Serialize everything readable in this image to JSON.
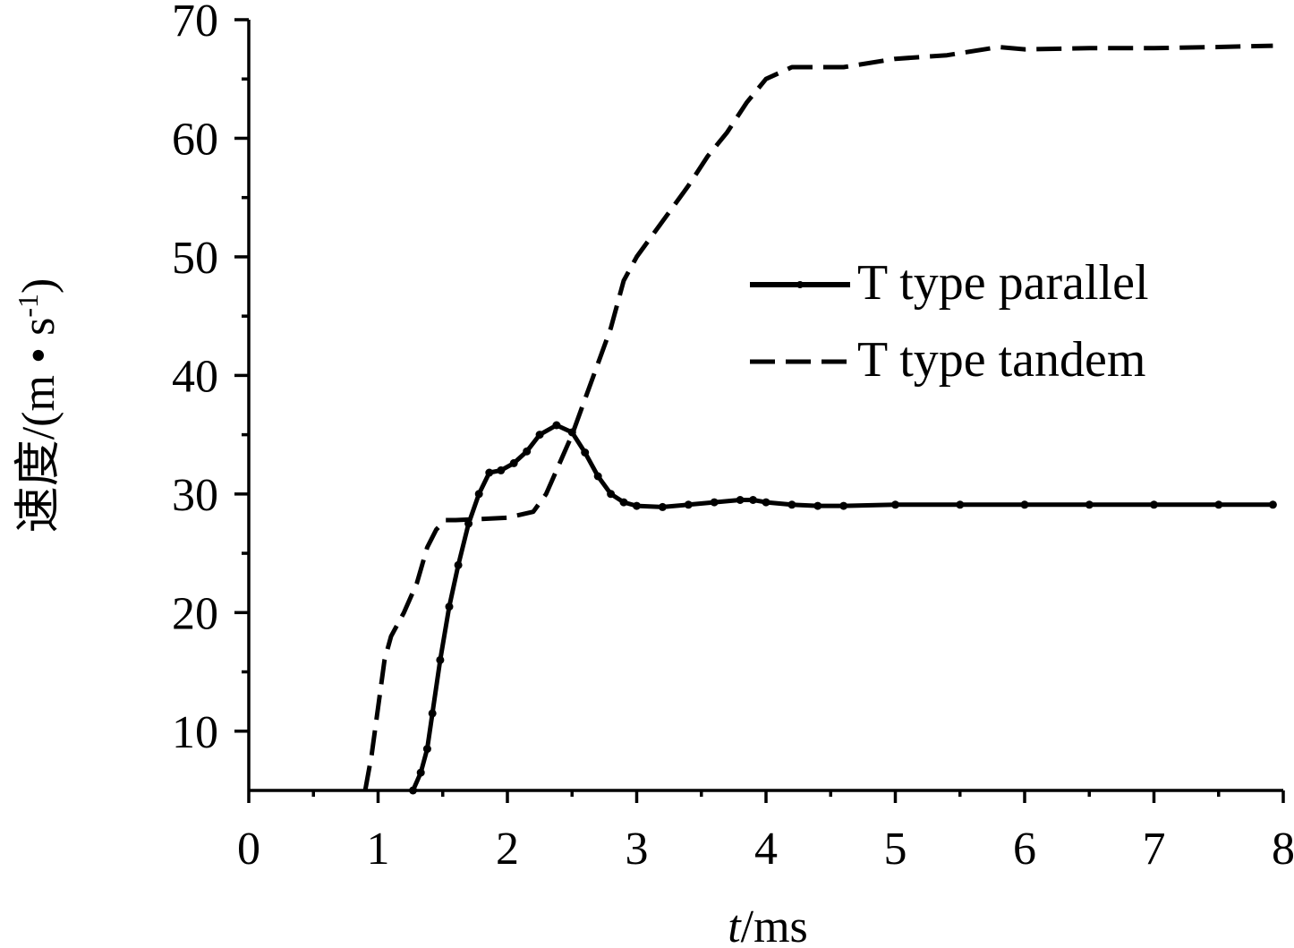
{
  "chart_data": {
    "type": "line",
    "xlabel_italic": "t",
    "xlabel_rest": "/ms",
    "ylabel_main": "速度/(m • s",
    "ylabel_sup": "-1",
    "ylabel_close": ")",
    "xlim": [
      0,
      8
    ],
    "ylim": [
      5,
      70
    ],
    "x_ticks": [
      0,
      1,
      2,
      3,
      4,
      5,
      6,
      7,
      8
    ],
    "y_ticks": [
      10,
      20,
      30,
      40,
      50,
      60,
      70
    ],
    "grid": false,
    "legend_position": "right-middle",
    "series": [
      {
        "name": "T type parallel",
        "style": "solid-marker",
        "color": "#000000",
        "points": [
          [
            1.27,
            5.0
          ],
          [
            1.33,
            6.5
          ],
          [
            1.38,
            8.5
          ],
          [
            1.42,
            11.5
          ],
          [
            1.48,
            16.0
          ],
          [
            1.55,
            20.5
          ],
          [
            1.62,
            24.0
          ],
          [
            1.7,
            27.5
          ],
          [
            1.78,
            30.0
          ],
          [
            1.86,
            31.8
          ],
          [
            1.95,
            32.0
          ],
          [
            2.05,
            32.6
          ],
          [
            2.15,
            33.6
          ],
          [
            2.25,
            35.0
          ],
          [
            2.38,
            35.8
          ],
          [
            2.5,
            35.2
          ],
          [
            2.6,
            33.5
          ],
          [
            2.7,
            31.5
          ],
          [
            2.8,
            30.0
          ],
          [
            2.9,
            29.3
          ],
          [
            3.0,
            29.0
          ],
          [
            3.2,
            28.9
          ],
          [
            3.4,
            29.1
          ],
          [
            3.6,
            29.3
          ],
          [
            3.8,
            29.5
          ],
          [
            3.9,
            29.5
          ],
          [
            4.0,
            29.3
          ],
          [
            4.2,
            29.1
          ],
          [
            4.4,
            29.0
          ],
          [
            4.6,
            29.0
          ],
          [
            5.0,
            29.1
          ],
          [
            5.5,
            29.1
          ],
          [
            6.0,
            29.1
          ],
          [
            6.5,
            29.1
          ],
          [
            7.0,
            29.1
          ],
          [
            7.5,
            29.1
          ],
          [
            7.92,
            29.1
          ]
        ]
      },
      {
        "name": "T type tandem",
        "style": "dashed",
        "color": "#000000",
        "points": [
          [
            0.9,
            5.0
          ],
          [
            0.95,
            8.0
          ],
          [
            1.0,
            12.0
          ],
          [
            1.05,
            16.0
          ],
          [
            1.1,
            18.0
          ],
          [
            1.2,
            20.0
          ],
          [
            1.3,
            22.5
          ],
          [
            1.38,
            25.5
          ],
          [
            1.45,
            27.0
          ],
          [
            1.52,
            27.8
          ],
          [
            1.6,
            27.8
          ],
          [
            1.8,
            27.9
          ],
          [
            2.0,
            28.0
          ],
          [
            2.2,
            28.5
          ],
          [
            2.3,
            30.0
          ],
          [
            2.4,
            32.5
          ],
          [
            2.5,
            35.0
          ],
          [
            2.6,
            38.0
          ],
          [
            2.7,
            41.0
          ],
          [
            2.8,
            44.0
          ],
          [
            2.9,
            48.0
          ],
          [
            3.0,
            50.0
          ],
          [
            3.2,
            53.0
          ],
          [
            3.4,
            56.0
          ],
          [
            3.55,
            58.5
          ],
          [
            3.7,
            60.5
          ],
          [
            3.85,
            63.0
          ],
          [
            4.0,
            65.0
          ],
          [
            4.2,
            66.0
          ],
          [
            4.6,
            66.0
          ],
          [
            5.0,
            66.7
          ],
          [
            5.4,
            67.0
          ],
          [
            5.8,
            67.7
          ],
          [
            6.0,
            67.5
          ],
          [
            6.5,
            67.6
          ],
          [
            7.0,
            67.6
          ],
          [
            7.5,
            67.7
          ],
          [
            7.92,
            67.8
          ]
        ]
      }
    ]
  }
}
